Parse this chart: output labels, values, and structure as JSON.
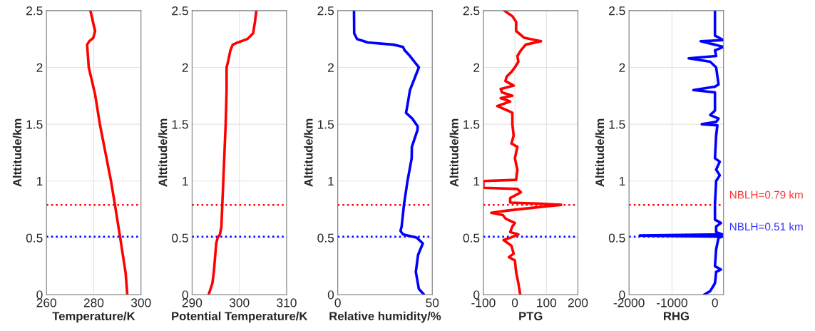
{
  "chart_data": [
    {
      "type": "line",
      "xlabel": "Temperature/K",
      "ylabel": "Alttitude/km",
      "xlim": [
        260,
        300
      ],
      "xticks": [
        260,
        280,
        300
      ],
      "ylim": [
        0,
        2.5
      ],
      "yticks": [
        0,
        0.5,
        1,
        1.5,
        2,
        2.5
      ],
      "grid": true,
      "line_style": "solid",
      "marker": "none",
      "series": [
        {
          "color": "#ff0000",
          "x": [
            294.2,
            293.5,
            291.2,
            288.9,
            287.3,
            282.6,
            280.6,
            277.9,
            277.2,
            278.1,
            279.8,
            280.6,
            279.9,
            278.6
          ],
          "values": [
            0,
            0.19,
            0.5,
            0.8,
            1.0,
            1.5,
            1.76,
            2.0,
            2.2,
            2.23,
            2.26,
            2.32,
            2.38,
            2.5
          ]
        }
      ],
      "ref_lines": [
        {
          "axis": "y",
          "value": 0.79,
          "color": "#ff0000",
          "line_style": "dotted"
        },
        {
          "axis": "y",
          "value": 0.51,
          "color": "#0000ff",
          "line_style": "dotted"
        }
      ]
    },
    {
      "type": "line",
      "xlabel": "Potential Temperature/K",
      "ylabel": "Alttitude/km",
      "xlim": [
        290,
        310
      ],
      "xticks": [
        290,
        300,
        310
      ],
      "ylim": [
        0,
        2.5
      ],
      "yticks": [
        0,
        0.5,
        1,
        1.5,
        2,
        2.5
      ],
      "grid": true,
      "line_style": "solid",
      "marker": "none",
      "series": [
        {
          "color": "#ff0000",
          "x": [
            293.5,
            294.3,
            294.6,
            295.1,
            295.4,
            295.9,
            296.2,
            296.4,
            296.6,
            297.1,
            297.3,
            297.3,
            297.6,
            298.1,
            298.6,
            299.7,
            301.7,
            302.9,
            303.3,
            303.6
          ],
          "values": [
            0,
            0.1,
            0.2,
            0.45,
            0.5,
            0.53,
            0.6,
            0.8,
            1.0,
            1.5,
            1.8,
            2.0,
            2.05,
            2.15,
            2.2,
            2.22,
            2.25,
            2.3,
            2.4,
            2.5
          ]
        }
      ],
      "ref_lines": [
        {
          "axis": "y",
          "value": 0.79,
          "color": "#ff0000",
          "line_style": "dotted"
        },
        {
          "axis": "y",
          "value": 0.51,
          "color": "#0000ff",
          "line_style": "dotted"
        }
      ]
    },
    {
      "type": "line",
      "xlabel": "Relative humidity/%",
      "ylabel": "Alttitude/km",
      "xlim": [
        0,
        50
      ],
      "xticks": [
        0,
        50
      ],
      "ylim": [
        0,
        2.5
      ],
      "yticks": [
        0,
        0.5,
        1,
        1.5,
        2,
        2.5
      ],
      "grid": true,
      "line_style": "solid",
      "marker": "none",
      "series": [
        {
          "color": "#0000ff",
          "x": [
            45.6,
            42.9,
            41.3,
            42.5,
            45.0,
            41.9,
            34.5,
            33.2,
            33.8,
            35.1,
            36.9,
            39.1,
            39.2,
            42.2,
            42.3,
            39.4,
            36.1,
            36.7,
            38.2,
            42.9,
            38.2,
            35.4,
            34.5,
            29.5,
            15.8,
            10.2,
            8.7,
            8.6
          ],
          "values": [
            0,
            0.05,
            0.2,
            0.35,
            0.45,
            0.5,
            0.53,
            0.56,
            0.6,
            0.8,
            1.0,
            1.2,
            1.3,
            1.45,
            1.48,
            1.55,
            1.6,
            1.65,
            1.8,
            2.0,
            2.1,
            2.15,
            2.18,
            2.2,
            2.22,
            2.25,
            2.3,
            2.5
          ]
        }
      ],
      "ref_lines": [
        {
          "axis": "y",
          "value": 0.79,
          "color": "#ff0000",
          "line_style": "dotted"
        },
        {
          "axis": "y",
          "value": 0.51,
          "color": "#0000ff",
          "line_style": "dotted"
        }
      ]
    },
    {
      "type": "line",
      "xlabel": "PTG",
      "ylabel": "Alttitude/km",
      "xlim": [
        -100,
        200
      ],
      "xticks": [
        -100,
        0,
        100,
        200
      ],
      "ylim": [
        0,
        2.5
      ],
      "yticks": [
        0,
        0.5,
        1,
        1.5,
        2,
        2.5
      ],
      "grid": true,
      "line_style": "solid",
      "marker": "none",
      "series": [
        {
          "color": "#ff0000",
          "x": [
            17,
            14,
            11,
            4,
            0,
            -19,
            -4,
            -11,
            -36,
            -15,
            11,
            -15,
            -8,
            0,
            -30,
            -38,
            -75,
            -23,
            75,
            147,
            83,
            -15,
            -15,
            19,
            8,
            -100,
            -100,
            4,
            8,
            0,
            8,
            -11,
            -4,
            -8,
            -8,
            -23,
            -56,
            -15,
            -45,
            -8,
            -41,
            -45,
            -4,
            -30,
            -26,
            -11,
            0,
            11,
            8,
            19,
            34,
            83,
            30,
            4,
            4,
            -8,
            -34
          ],
          "values": [
            0,
            0.05,
            0.1,
            0.2,
            0.3,
            0.33,
            0.36,
            0.43,
            0.48,
            0.5,
            0.53,
            0.55,
            0.6,
            0.63,
            0.67,
            0.7,
            0.72,
            0.74,
            0.77,
            0.79,
            0.8,
            0.81,
            0.85,
            0.9,
            0.93,
            0.94,
            1.0,
            1.01,
            1.1,
            1.2,
            1.3,
            1.33,
            1.4,
            1.5,
            1.6,
            1.62,
            1.66,
            1.7,
            1.73,
            1.75,
            1.78,
            1.81,
            1.84,
            1.88,
            1.92,
            1.96,
            2.0,
            2.05,
            2.1,
            2.15,
            2.2,
            2.23,
            2.26,
            2.32,
            2.4,
            2.45,
            2.5
          ]
        }
      ],
      "ref_lines": [
        {
          "axis": "y",
          "value": 0.79,
          "color": "#ff0000",
          "line_style": "dotted"
        },
        {
          "axis": "y",
          "value": 0.51,
          "color": "#0000ff",
          "line_style": "dotted"
        }
      ]
    },
    {
      "type": "line",
      "xlabel": "RHG",
      "ylabel": "Alttitude/km",
      "xlim": [
        -2000,
        200
      ],
      "xticks": [
        -2000,
        -1000,
        0
      ],
      "ylim": [
        0,
        2.5
      ],
      "yticks": [
        0,
        0.5,
        1,
        1.5,
        2,
        2.5
      ],
      "grid": true,
      "line_style": "solid",
      "marker": "none",
      "series": [
        {
          "color": "#0000ff",
          "x": [
            -250,
            -111,
            0,
            28,
            139,
            0,
            28,
            83,
            167,
            -1750,
            167,
            28,
            28,
            139,
            0,
            0,
            28,
            111,
            28,
            111,
            0,
            28,
            56,
            -306,
            28,
            83,
            -111,
            0,
            0,
            -500,
            0,
            83,
            28,
            -111,
            -611,
            28,
            0,
            194,
            0,
            -333,
            194,
            0,
            0
          ],
          "values": [
            0,
            0.03,
            0.1,
            0.2,
            0.22,
            0.25,
            0.4,
            0.5,
            0.51,
            0.52,
            0.53,
            0.55,
            0.6,
            0.63,
            0.66,
            0.8,
            1.0,
            1.05,
            1.1,
            1.17,
            1.2,
            1.4,
            1.49,
            1.5,
            1.52,
            1.55,
            1.58,
            1.62,
            1.78,
            1.8,
            1.83,
            1.85,
            2.0,
            2.05,
            2.08,
            2.1,
            2.15,
            2.18,
            2.2,
            2.23,
            2.24,
            2.28,
            2.5
          ]
        }
      ],
      "ref_lines": [
        {
          "axis": "y",
          "value": 0.79,
          "color": "#ff0000",
          "line_style": "dotted",
          "label": "NBLH=0.79 km"
        },
        {
          "axis": "y",
          "value": 0.51,
          "color": "#0000ff",
          "line_style": "dotted",
          "label": "NBLH=0.51 km"
        }
      ]
    }
  ]
}
